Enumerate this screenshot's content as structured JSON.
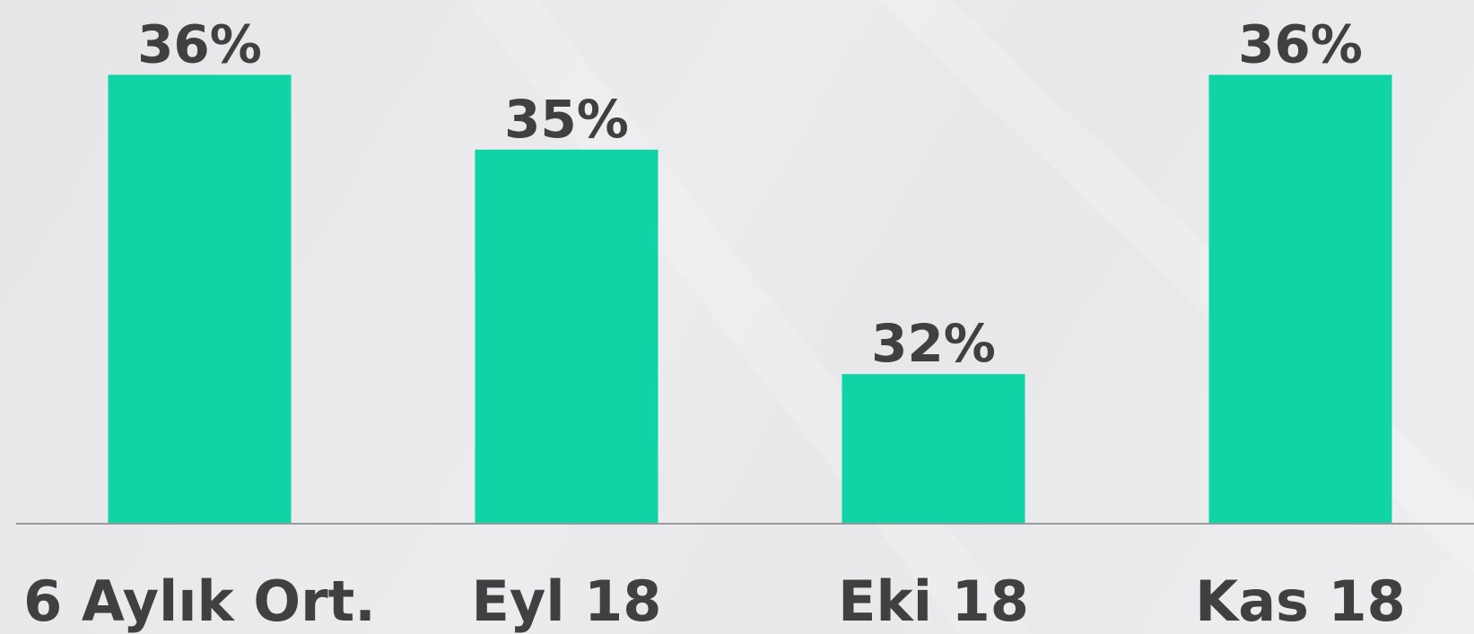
{
  "chart_data": {
    "type": "bar",
    "categories": [
      "6 Aylık Ort.",
      "Eyl 18",
      "Eki 18",
      "Kas 18"
    ],
    "values": [
      36,
      35,
      32,
      36
    ],
    "value_labels": [
      "36%",
      "35%",
      "32%",
      "36%"
    ],
    "color": "#0fd4a6",
    "ylim": [
      30,
      37
    ]
  }
}
